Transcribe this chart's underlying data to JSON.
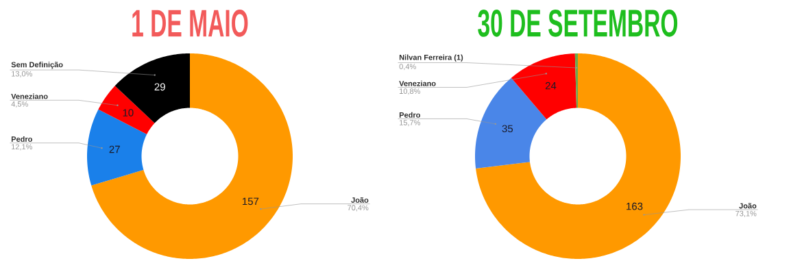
{
  "chart_data": [
    {
      "type": "donut",
      "title": "1 DE MAIO",
      "categories": [
        "João",
        "Pedro",
        "Veneziano",
        "Sem Definição"
      ],
      "values": [
        157,
        27,
        10,
        29
      ],
      "colors": [
        "#ff9900",
        "#1a80ea",
        "#ff0000",
        "#000000"
      ],
      "value_labels": [
        "157",
        "27",
        "10",
        "29"
      ],
      "annotations": [
        "70,4%",
        "12,1%",
        "4,5%",
        "13,0%"
      ]
    },
    {
      "type": "donut",
      "title": "30 DE SETEMBRO",
      "categories": [
        "João",
        "Pedro",
        "Veneziano",
        "Nilvan Ferreira (1)"
      ],
      "values": [
        163,
        35,
        24,
        1
      ],
      "colors": [
        "#ff9900",
        "#4a86e8",
        "#ff0000",
        "#6aa84f"
      ],
      "value_labels": [
        "163",
        "35",
        "24",
        null
      ],
      "annotations": [
        "73,1%",
        "15,7%",
        "10,8%",
        "0,4%"
      ]
    }
  ]
}
